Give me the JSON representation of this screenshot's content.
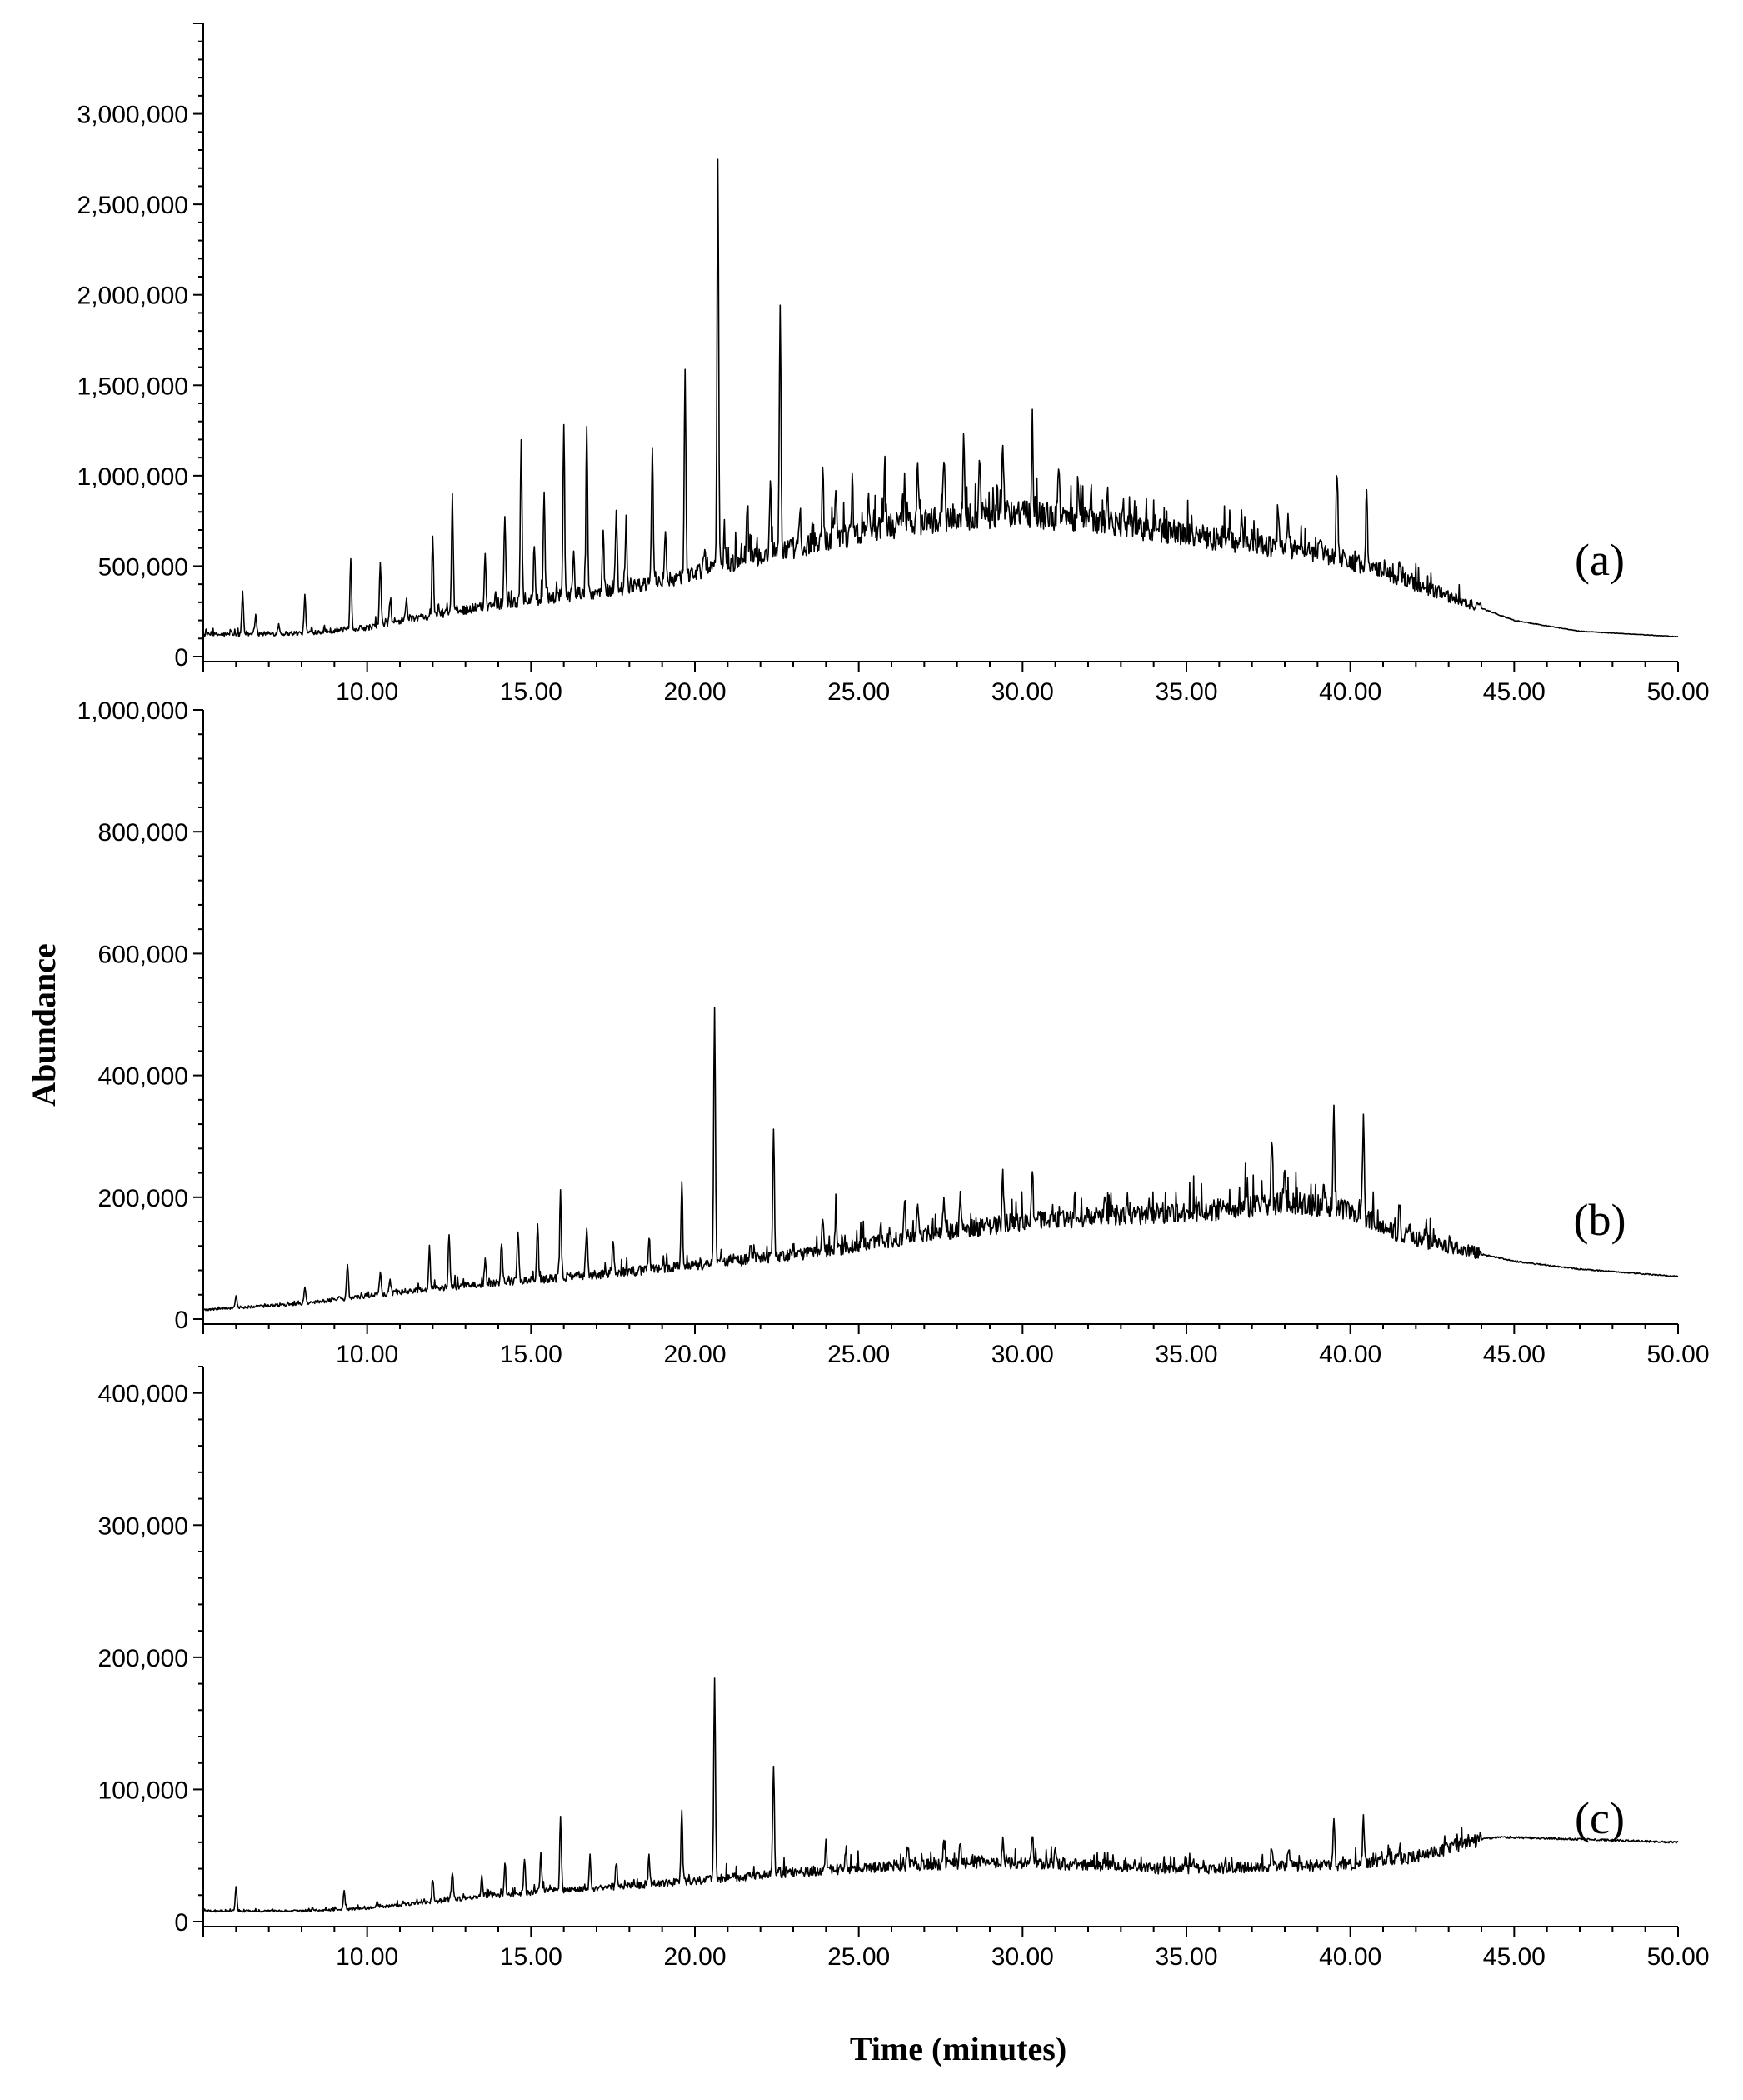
{
  "chart_data": [
    {
      "id": "a",
      "type": "line",
      "label": "(a)",
      "xlim": [
        5,
        50
      ],
      "ylim": [
        0,
        3500000
      ],
      "yticks": [
        {
          "value": 0,
          "label": "0"
        },
        {
          "value": 500000,
          "label": "500,000"
        },
        {
          "value": 1000000,
          "label": "1,000,000"
        },
        {
          "value": 1500000,
          "label": "1,500,000"
        },
        {
          "value": 2000000,
          "label": "2,000,000"
        },
        {
          "value": 2500000,
          "label": "2,500,000"
        },
        {
          "value": 3000000,
          "label": "3,000,000"
        }
      ],
      "baseline": [
        [
          5,
          120000
        ],
        [
          8,
          130000
        ],
        [
          10,
          160000
        ],
        [
          12,
          230000
        ],
        [
          14,
          290000
        ],
        [
          16,
          330000
        ],
        [
          18,
          380000
        ],
        [
          20,
          460000
        ],
        [
          22,
          560000
        ],
        [
          24,
          640000
        ],
        [
          26,
          720000
        ],
        [
          28,
          770000
        ],
        [
          30,
          790000
        ],
        [
          32,
          760000
        ],
        [
          34,
          700000
        ],
        [
          36,
          650000
        ],
        [
          38,
          600000
        ],
        [
          39.5,
          560000
        ],
        [
          40.5,
          500000
        ],
        [
          42,
          400000
        ],
        [
          43.5,
          300000
        ],
        [
          45,
          200000
        ],
        [
          47,
          140000
        ],
        [
          50,
          110000
        ]
      ],
      "peaks": [
        [
          6.2,
          360000
        ],
        [
          6.6,
          230000
        ],
        [
          7.3,
          180000
        ],
        [
          8.1,
          340000
        ],
        [
          9.5,
          530000
        ],
        [
          10.4,
          520000
        ],
        [
          10.7,
          310000
        ],
        [
          11.2,
          330000
        ],
        [
          12.0,
          660000
        ],
        [
          12.6,
          880000
        ],
        [
          13.6,
          560000
        ],
        [
          14.2,
          790000
        ],
        [
          14.7,
          1200000
        ],
        [
          15.1,
          620000
        ],
        [
          15.4,
          910000
        ],
        [
          16.0,
          1290000
        ],
        [
          16.3,
          560000
        ],
        [
          16.7,
          1290000
        ],
        [
          17.2,
          700000
        ],
        [
          17.6,
          830000
        ],
        [
          17.9,
          760000
        ],
        [
          18.7,
          1180000
        ],
        [
          19.1,
          650000
        ],
        [
          19.7,
          1580000
        ],
        [
          20.3,
          600000
        ],
        [
          20.7,
          2760000
        ],
        [
          20.9,
          700000
        ],
        [
          21.6,
          880000
        ],
        [
          22.3,
          980000
        ],
        [
          22.6,
          1980000
        ],
        [
          23.2,
          760000
        ],
        [
          23.9,
          1040000
        ],
        [
          24.3,
          980000
        ],
        [
          24.8,
          940000
        ],
        [
          25.3,
          900000
        ],
        [
          25.8,
          920000
        ],
        [
          26.4,
          1000000
        ],
        [
          26.8,
          1080000
        ],
        [
          27.6,
          1150000
        ],
        [
          28.2,
          1180000
        ],
        [
          28.7,
          1060000
        ],
        [
          29.4,
          1120000
        ],
        [
          30.3,
          1200000
        ],
        [
          31.1,
          1030000
        ],
        [
          31.7,
          1020000
        ],
        [
          32.6,
          880000
        ],
        [
          33.8,
          760000
        ],
        [
          36.7,
          700000
        ],
        [
          37.8,
          820000
        ],
        [
          38.1,
          800000
        ],
        [
          38.5,
          680000
        ],
        [
          39.1,
          690000
        ],
        [
          39.6,
          980000
        ],
        [
          40.5,
          930000
        ],
        [
          41.5,
          520000
        ],
        [
          41.9,
          420000
        ],
        [
          42.3,
          380000
        ],
        [
          43.3,
          300000
        ]
      ],
      "x": [],
      "y": []
    },
    {
      "id": "b",
      "type": "line",
      "label": "(b)",
      "xlim": [
        5,
        50
      ],
      "ylim": [
        0,
        1000000
      ],
      "yticks": [
        {
          "value": 0,
          "label": "0"
        },
        {
          "value": 200000,
          "label": "200,000"
        },
        {
          "value": 400000,
          "label": "400,000"
        },
        {
          "value": 600000,
          "label": "600,000"
        },
        {
          "value": 800000,
          "label": "800,000"
        },
        {
          "value": 1000000,
          "label": "1,000,000"
        }
      ],
      "baseline": [
        [
          5,
          15000
        ],
        [
          8,
          25000
        ],
        [
          10,
          38000
        ],
        [
          12,
          50000
        ],
        [
          14,
          60000
        ],
        [
          16,
          68000
        ],
        [
          18,
          78000
        ],
        [
          20,
          88000
        ],
        [
          22,
          100000
        ],
        [
          24,
          112000
        ],
        [
          26,
          130000
        ],
        [
          28,
          145000
        ],
        [
          30,
          160000
        ],
        [
          32,
          168000
        ],
        [
          34,
          173000
        ],
        [
          36,
          180000
        ],
        [
          38,
          190000
        ],
        [
          39.5,
          185000
        ],
        [
          40.5,
          165000
        ],
        [
          41.5,
          140000
        ],
        [
          43,
          118000
        ],
        [
          45,
          95000
        ],
        [
          47,
          82000
        ],
        [
          50,
          70000
        ]
      ],
      "peaks": [
        [
          6.0,
          38000
        ],
        [
          8.1,
          55000
        ],
        [
          9.4,
          92000
        ],
        [
          10.4,
          80000
        ],
        [
          10.7,
          62000
        ],
        [
          11.9,
          120000
        ],
        [
          12.5,
          142000
        ],
        [
          13.6,
          95000
        ],
        [
          14.1,
          128000
        ],
        [
          14.6,
          148000
        ],
        [
          15.2,
          158000
        ],
        [
          15.9,
          208000
        ],
        [
          16.7,
          148000
        ],
        [
          17.5,
          135000
        ],
        [
          18.6,
          125000
        ],
        [
          19.6,
          230000
        ],
        [
          20.6,
          520000
        ],
        [
          21.7,
          120000
        ],
        [
          22.4,
          315000
        ],
        [
          23.9,
          160000
        ],
        [
          24.3,
          172000
        ],
        [
          26.4,
          190000
        ],
        [
          26.8,
          195000
        ],
        [
          27.6,
          208000
        ],
        [
          28.1,
          208000
        ],
        [
          29.4,
          232000
        ],
        [
          30.3,
          238000
        ],
        [
          31.6,
          195000
        ],
        [
          32.5,
          198000
        ],
        [
          33.5,
          190000
        ],
        [
          36.8,
          205000
        ],
        [
          37.6,
          272000
        ],
        [
          38.0,
          262000
        ],
        [
          39.2,
          222000
        ],
        [
          39.5,
          338000
        ],
        [
          40.4,
          330000
        ],
        [
          41.5,
          195000
        ],
        [
          41.8,
          165000
        ],
        [
          42.3,
          150000
        ]
      ],
      "x": [],
      "y": []
    },
    {
      "id": "c",
      "type": "line",
      "label": "(c)",
      "xlim": [
        5,
        50
      ],
      "ylim": [
        0,
        420000
      ],
      "yticks": [
        {
          "value": 0,
          "label": "0"
        },
        {
          "value": 100000,
          "label": "100,000"
        },
        {
          "value": 200000,
          "label": "200,000"
        },
        {
          "value": 300000,
          "label": "300,000"
        },
        {
          "value": 400000,
          "label": "400,000"
        }
      ],
      "baseline": [
        [
          5,
          8000
        ],
        [
          8,
          8000
        ],
        [
          10,
          10000
        ],
        [
          12,
          15000
        ],
        [
          14,
          20000
        ],
        [
          16,
          24000
        ],
        [
          18,
          27000
        ],
        [
          20,
          31000
        ],
        [
          22,
          35000
        ],
        [
          24,
          39000
        ],
        [
          26,
          42000
        ],
        [
          28,
          44000
        ],
        [
          30,
          44000
        ],
        [
          32,
          43000
        ],
        [
          34,
          40000
        ],
        [
          36,
          40000
        ],
        [
          38,
          42000
        ],
        [
          40,
          43000
        ],
        [
          41.5,
          47000
        ],
        [
          42.5,
          52000
        ],
        [
          43.5,
          60000
        ],
        [
          44.5,
          64000
        ],
        [
          46,
          63000
        ],
        [
          50,
          60000
        ]
      ],
      "peaks": [
        [
          6.0,
          27000
        ],
        [
          9.3,
          24000
        ],
        [
          10.3,
          15000
        ],
        [
          12.0,
          30000
        ],
        [
          12.6,
          38000
        ],
        [
          13.5,
          35000
        ],
        [
          14.2,
          43000
        ],
        [
          14.8,
          47000
        ],
        [
          15.3,
          52000
        ],
        [
          15.9,
          78000
        ],
        [
          16.8,
          50000
        ],
        [
          17.6,
          46000
        ],
        [
          18.6,
          48000
        ],
        [
          19.6,
          86000
        ],
        [
          20.6,
          182000
        ],
        [
          22.4,
          118000
        ],
        [
          24.0,
          56000
        ],
        [
          24.6,
          52000
        ],
        [
          26.5,
          58000
        ],
        [
          27.6,
          62000
        ],
        [
          28.1,
          60000
        ],
        [
          29.4,
          62000
        ],
        [
          30.3,
          64000
        ],
        [
          31.0,
          52000
        ],
        [
          32.5,
          48000
        ],
        [
          37.6,
          56000
        ],
        [
          38.1,
          54000
        ],
        [
          39.5,
          76000
        ],
        [
          40.4,
          79000
        ],
        [
          41.5,
          56000
        ]
      ],
      "x": [],
      "y": []
    }
  ],
  "x_axis": {
    "ticks": [
      {
        "value": 10,
        "label": "10.00"
      },
      {
        "value": 15,
        "label": "15.00"
      },
      {
        "value": 20,
        "label": "20.00"
      },
      {
        "value": 25,
        "label": "25.00"
      },
      {
        "value": 30,
        "label": "30.00"
      },
      {
        "value": 35,
        "label": "35.00"
      },
      {
        "value": 40,
        "label": "40.00"
      },
      {
        "value": 45,
        "label": "45.00"
      },
      {
        "value": 50,
        "label": "50.00"
      }
    ],
    "title": "Time (minutes)"
  },
  "y_axis": {
    "title": "Abundance"
  },
  "colors": {
    "trace": "#000000",
    "axis": "#000000"
  }
}
